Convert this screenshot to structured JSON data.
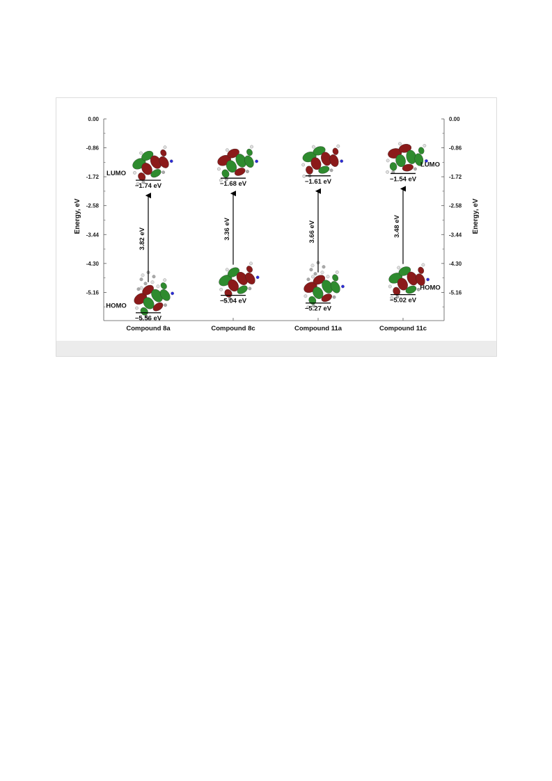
{
  "chart_data": {
    "type": "energy-level diagram",
    "ylabel_left": "Energy, eV",
    "ylabel_right": "Energy, eV",
    "ylim": [
      -6.0,
      0.0
    ],
    "y_ticks": [
      0.0,
      -0.86,
      -1.72,
      -2.58,
      -3.44,
      -4.3,
      -5.16
    ],
    "y_tick_labels": [
      "0.00",
      "-0.86",
      "-1.72",
      "-2.58",
      "-3.44",
      "-4.30",
      "-5.16"
    ],
    "categories": [
      "Compound 8a",
      "Compound 8c",
      "Compound 11a",
      "Compound 11c"
    ],
    "lumo_label": "LUMO",
    "homo_label": "HOMO",
    "lumo": [
      -1.74,
      -1.68,
      -1.61,
      -1.54
    ],
    "homo": [
      -5.56,
      -5.04,
      -5.27,
      -5.02
    ],
    "lumo_labels": [
      "−1.74 eV",
      "−1.68 eV",
      "−1.61 eV",
      "−1.54 eV"
    ],
    "homo_labels": [
      "−5.56 eV",
      "−5.04 eV",
      "−5.27 eV",
      "−5.02 eV"
    ],
    "gaps": [
      3.82,
      3.36,
      3.66,
      3.48
    ],
    "gap_labels": [
      "3.82 eV",
      "3.36 eV",
      "3.66 eV",
      "3.48 eV"
    ],
    "orbital_colors": {
      "positive": "#8b1a1a",
      "negative": "#2e8b2e",
      "atom_c": "#a9a9a9",
      "atom_h": "#e0e0e0",
      "atom_n": "#2b2bd6"
    }
  }
}
